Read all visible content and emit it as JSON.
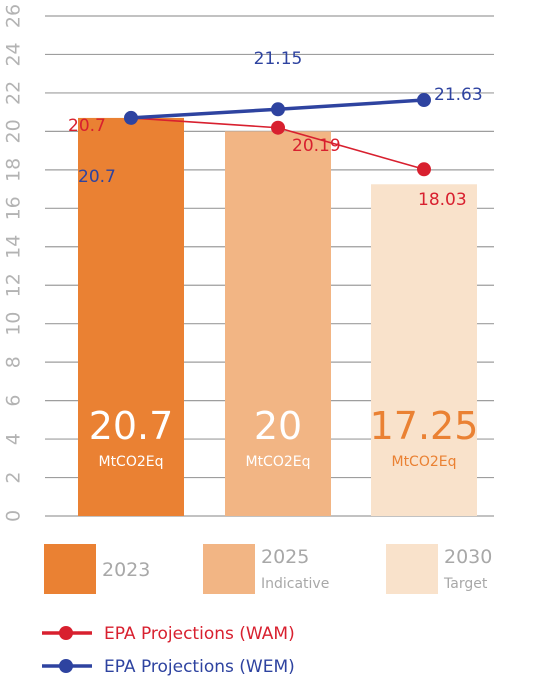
{
  "chart_data": {
    "type": "bar",
    "categories": [
      "2023",
      "2025",
      "2030"
    ],
    "category_sublabels": [
      "",
      "Indicative",
      "Target"
    ],
    "bars": {
      "values": [
        20.7,
        20,
        17.25
      ],
      "value_labels": [
        "20.7",
        "20",
        "17.25"
      ],
      "unit": "MtCO2Eq",
      "colors": [
        "#ea8133",
        "#f2b584",
        "#f9e2cb"
      ]
    },
    "value_label_colors": [
      "#ffffff",
      "#ffffff",
      "#ea8133"
    ],
    "series": [
      {
        "name": "EPA Projections (WAM)",
        "type": "line",
        "values": [
          20.7,
          20.19,
          18.03
        ],
        "labels": [
          "20.7",
          "20.19",
          "18.03"
        ],
        "color": "#d8202f"
      },
      {
        "name": "EPA Projections (WEM)",
        "type": "line",
        "values": [
          20.7,
          21.15,
          21.63
        ],
        "labels": [
          "20.7",
          "21.15",
          "21.63"
        ],
        "color": "#2e43a0"
      }
    ],
    "y_ticks": [
      0,
      2,
      4,
      6,
      8,
      10,
      12,
      14,
      16,
      18,
      20,
      22,
      24,
      26
    ],
    "ylim": [
      0,
      26
    ],
    "grid": true,
    "legend_position": "bottom"
  }
}
